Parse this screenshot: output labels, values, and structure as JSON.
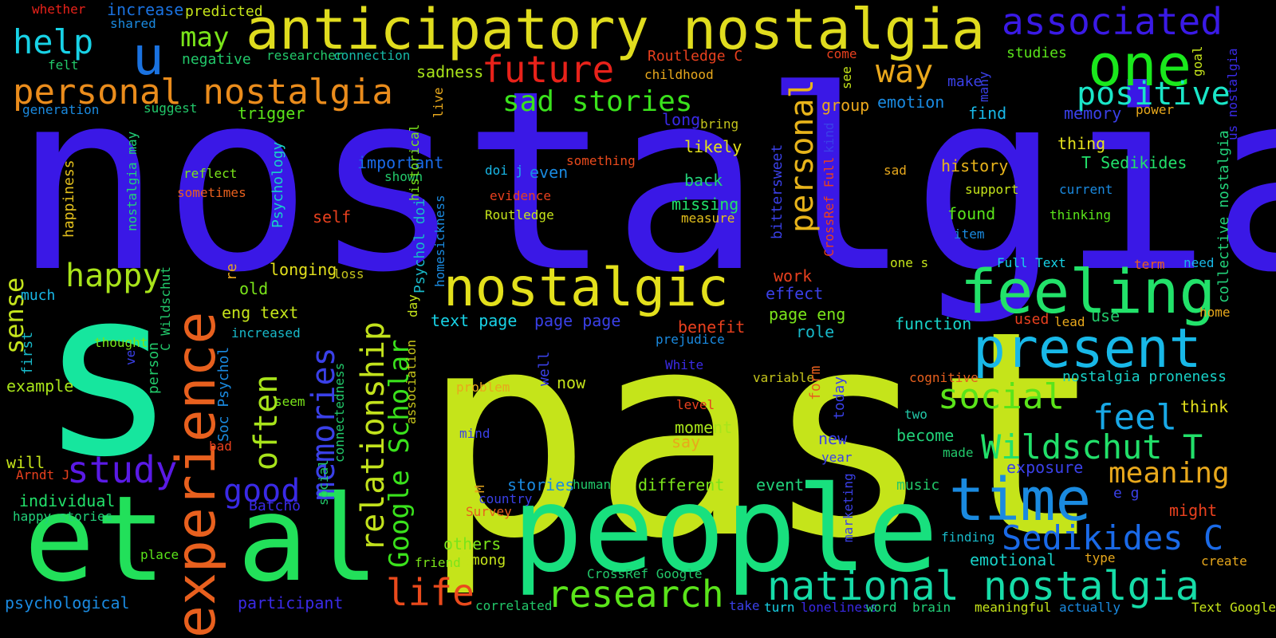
{
  "words": [
    {
      "text": "nostalgia",
      "color": "#3a18e6"
    },
    {
      "text": "past",
      "color": "#c5e41a"
    },
    {
      "text": "s",
      "color": "#16e69e"
    },
    {
      "text": "people",
      "color": "#18e07e"
    },
    {
      "text": "et al",
      "color": "#22e05a"
    },
    {
      "text": "anticipatory nostalgia",
      "color": "#e0dc1e"
    },
    {
      "text": "feeling",
      "color": "#22e26a"
    },
    {
      "text": "present",
      "color": "#18b8e8"
    },
    {
      "text": "time",
      "color": "#1a8ae0"
    },
    {
      "text": "experience",
      "color": "#e8601e"
    },
    {
      "text": "nostalgic",
      "color": "#e3e01c"
    },
    {
      "text": "personal nostalgia",
      "color": "#ea8c1c"
    },
    {
      "text": "one",
      "color": "#1ae81c"
    },
    {
      "text": "u",
      "color": "#1a72e0"
    },
    {
      "text": "associated",
      "color": "#3a1ae6"
    },
    {
      "text": "help",
      "color": "#18d2e6"
    },
    {
      "text": "future",
      "color": "#e8221a"
    },
    {
      "text": "national nostalgia",
      "color": "#16dca8"
    },
    {
      "text": "Sedikides C",
      "color": "#1a6ae8"
    },
    {
      "text": "Wildschut T",
      "color": "#22e06a"
    },
    {
      "text": "research",
      "color": "#5ae41a"
    },
    {
      "text": "life",
      "color": "#ea4a1c"
    },
    {
      "text": "memories",
      "color": "#3a40e8"
    },
    {
      "text": "relationship",
      "color": "#c2e21c"
    },
    {
      "text": "Google Scholar",
      "color": "#3ae21c"
    },
    {
      "text": "study",
      "color": "#5a1ae6"
    },
    {
      "text": "personal",
      "color": "#e8b41a"
    },
    {
      "text": "way",
      "color": "#eaa81c"
    },
    {
      "text": "positive",
      "color": "#1ae6c8"
    },
    {
      "text": "sad stories",
      "color": "#3ae21c"
    },
    {
      "text": "social",
      "color": "#5ae41a"
    },
    {
      "text": "feel",
      "color": "#18a8e6"
    },
    {
      "text": "meaning",
      "color": "#e8a81c"
    },
    {
      "text": "often",
      "color": "#a8e41a"
    },
    {
      "text": "happy",
      "color": "#a8e41a"
    },
    {
      "text": "good",
      "color": "#3a2ae6"
    },
    {
      "text": "sense",
      "color": "#c4e41c"
    },
    {
      "text": "may",
      "color": "#7ae41a"
    },
    {
      "text": "whether",
      "color": "#e8221a"
    },
    {
      "text": "increase",
      "color": "#1a72e0"
    },
    {
      "text": "predicted",
      "color": "#c5e41a"
    },
    {
      "text": "shared",
      "color": "#1a8ae0"
    },
    {
      "text": "negative",
      "color": "#22c86a"
    },
    {
      "text": "researcher",
      "color": "#22c86a"
    },
    {
      "text": "connection",
      "color": "#16b8a8"
    },
    {
      "text": "Routledge C",
      "color": "#e8401e"
    },
    {
      "text": "childhood",
      "color": "#e8a81c"
    },
    {
      "text": "come",
      "color": "#e8401e"
    },
    {
      "text": "studies",
      "color": "#5ae41a"
    },
    {
      "text": "felt",
      "color": "#22c86a"
    },
    {
      "text": "sadness",
      "color": "#a8e41a"
    },
    {
      "text": "generation",
      "color": "#1a8ae0"
    },
    {
      "text": "suggest",
      "color": "#22c86a"
    },
    {
      "text": "trigger",
      "color": "#5ae41a"
    },
    {
      "text": "group",
      "color": "#eaa81c"
    },
    {
      "text": "emotion",
      "color": "#1a8ae0"
    },
    {
      "text": "make",
      "color": "#3a40e8"
    },
    {
      "text": "find",
      "color": "#18b8e8"
    },
    {
      "text": "memory",
      "color": "#3a40e8"
    },
    {
      "text": "power",
      "color": "#e8a81c"
    },
    {
      "text": "long",
      "color": "#3a2ae6"
    },
    {
      "text": "bring",
      "color": "#c4c41c"
    },
    {
      "text": "likely",
      "color": "#e3e01c"
    },
    {
      "text": "thing",
      "color": "#e3e01c"
    },
    {
      "text": "T Sedikides",
      "color": "#22e06a"
    },
    {
      "text": "history",
      "color": "#e8b41a"
    },
    {
      "text": "sad",
      "color": "#e8a81c"
    },
    {
      "text": "important",
      "color": "#1a6ae8"
    },
    {
      "text": "something",
      "color": "#ea4a1c"
    },
    {
      "text": "doi j",
      "color": "#18b8e8"
    },
    {
      "text": "even",
      "color": "#1a8ae0"
    },
    {
      "text": "back",
      "color": "#22d27a"
    },
    {
      "text": "reflect",
      "color": "#7ae41a"
    },
    {
      "text": "shown",
      "color": "#22c86a"
    },
    {
      "text": "evidence",
      "color": "#e8401e"
    },
    {
      "text": "support",
      "color": "#c5e41a"
    },
    {
      "text": "current",
      "color": "#1a8ae0"
    },
    {
      "text": "sometimes",
      "color": "#e8601e"
    },
    {
      "text": "missing",
      "color": "#22e06a"
    },
    {
      "text": "found",
      "color": "#5ae41a"
    },
    {
      "text": "thinking",
      "color": "#5ae41a"
    },
    {
      "text": "self",
      "color": "#e8401e"
    },
    {
      "text": "Routledge",
      "color": "#c5e41a"
    },
    {
      "text": "measure",
      "color": "#e3c01c"
    },
    {
      "text": "item",
      "color": "#1a8ae0"
    },
    {
      "text": "one s",
      "color": "#c5e41a"
    },
    {
      "text": "Full Text",
      "color": "#18d2e6"
    },
    {
      "text": "term",
      "color": "#e8601e"
    },
    {
      "text": "need",
      "color": "#18b8e8"
    },
    {
      "text": "much",
      "color": "#18b8e8"
    },
    {
      "text": "longing",
      "color": "#e3e01c"
    },
    {
      "text": "loss",
      "color": "#c4c41c"
    },
    {
      "text": "old",
      "color": "#7ae41a"
    },
    {
      "text": "work",
      "color": "#e8401e"
    },
    {
      "text": "effect",
      "color": "#3a40e8"
    },
    {
      "text": "eng text",
      "color": "#c5e41a"
    },
    {
      "text": "increased",
      "color": "#18b8c8"
    },
    {
      "text": "text page",
      "color": "#18d2e6"
    },
    {
      "text": "page page",
      "color": "#3a40e8"
    },
    {
      "text": "benefit",
      "color": "#e8401e"
    },
    {
      "text": "page eng",
      "color": "#7ae41a"
    },
    {
      "text": "role",
      "color": "#18b8c8"
    },
    {
      "text": "function",
      "color": "#18d2c8"
    },
    {
      "text": "used",
      "color": "#e8401e"
    },
    {
      "text": "lead",
      "color": "#e8a81c"
    },
    {
      "text": "use",
      "color": "#22c86a"
    },
    {
      "text": "home",
      "color": "#e8a81c"
    },
    {
      "text": "thought",
      "color": "#7ae41a"
    },
    {
      "text": "prejudice",
      "color": "#1a8ae0"
    },
    {
      "text": "White",
      "color": "#3a2ae6"
    },
    {
      "text": "cognitive",
      "color": "#e8601e"
    },
    {
      "text": "nostalgia proneness",
      "color": "#18d2c8"
    },
    {
      "text": "example",
      "color": "#a8e41a"
    },
    {
      "text": "seem",
      "color": "#7ae41a"
    },
    {
      "text": "problem",
      "color": "#e8a81c"
    },
    {
      "text": "now",
      "color": "#c5e41a"
    },
    {
      "text": "variable",
      "color": "#c4c41c"
    },
    {
      "text": "level",
      "color": "#e8401e"
    },
    {
      "text": "think",
      "color": "#e3e01c"
    },
    {
      "text": "two",
      "color": "#22c8a8"
    },
    {
      "text": "moment",
      "color": "#a8e41a"
    },
    {
      "text": "become",
      "color": "#22d27a"
    },
    {
      "text": "mind",
      "color": "#3a40e8"
    },
    {
      "text": "say",
      "color": "#e8a81c"
    },
    {
      "text": "new",
      "color": "#3a40e8"
    },
    {
      "text": "made",
      "color": "#22c86a"
    },
    {
      "text": "bad",
      "color": "#e8401e"
    },
    {
      "text": "year",
      "color": "#3a40e8"
    },
    {
      "text": "exposure",
      "color": "#3a40e8"
    },
    {
      "text": "will",
      "color": "#c5e41a"
    },
    {
      "text": "Arndt J",
      "color": "#e8401e"
    },
    {
      "text": "stories",
      "color": "#1a8ae0"
    },
    {
      "text": "human",
      "color": "#22c86a"
    },
    {
      "text": "different",
      "color": "#7ae41a"
    },
    {
      "text": "event",
      "color": "#22d27a"
    },
    {
      "text": "music",
      "color": "#22c86a"
    },
    {
      "text": "e g",
      "color": "#3a40e8"
    },
    {
      "text": "individual",
      "color": "#22e06a"
    },
    {
      "text": "Batcho",
      "color": "#3a2ae6"
    },
    {
      "text": "country",
      "color": "#3a40e8"
    },
    {
      "text": "happy stories",
      "color": "#22d27a"
    },
    {
      "text": "Survey",
      "color": "#e8601e"
    },
    {
      "text": "might",
      "color": "#e8401e"
    },
    {
      "text": "finding",
      "color": "#18b8c8"
    },
    {
      "text": "others",
      "color": "#7ae41a"
    },
    {
      "text": "place",
      "color": "#5ae41a"
    },
    {
      "text": "among",
      "color": "#c5e41a"
    },
    {
      "text": "friend",
      "color": "#7ae41a"
    },
    {
      "text": "emotional",
      "color": "#18d2c8"
    },
    {
      "text": "type",
      "color": "#e8a81c"
    },
    {
      "text": "create",
      "color": "#e8a81c"
    },
    {
      "text": "CrossRef Google",
      "color": "#22c86a"
    },
    {
      "text": "psychological",
      "color": "#1a8ae0"
    },
    {
      "text": "participant",
      "color": "#3a2ae6"
    },
    {
      "text": "correlated",
      "color": "#22c86a"
    },
    {
      "text": "take",
      "color": "#3a40e8"
    },
    {
      "text": "turn",
      "color": "#18d2e6"
    },
    {
      "text": "loneliness",
      "color": "#3a2ae6"
    },
    {
      "text": "word",
      "color": "#22d27a"
    },
    {
      "text": "brain",
      "color": "#22d27a"
    },
    {
      "text": "meaningful",
      "color": "#c5e41a"
    },
    {
      "text": "actually",
      "color": "#1a8ae0"
    },
    {
      "text": "Text Google",
      "color": "#c5e41a"
    },
    {
      "text": "nostalgia may",
      "color": "#22d27a"
    },
    {
      "text": "happiness",
      "color": "#e3c01c"
    },
    {
      "text": "Psychology",
      "color": "#18d2c8"
    },
    {
      "text": "historical",
      "color": "#7ae41a"
    },
    {
      "text": "live",
      "color": "#e8a81c"
    },
    {
      "text": "Psychol doi",
      "color": "#18b8c8"
    },
    {
      "text": "homesickness",
      "color": "#1a8ae0"
    },
    {
      "text": "day",
      "color": "#c5e41a"
    },
    {
      "text": "association",
      "color": "#c5c41a"
    },
    {
      "text": "well",
      "color": "#3a40e8"
    },
    {
      "text": "C Wildschut",
      "color": "#22c86a"
    },
    {
      "text": "person",
      "color": "#22c86a"
    },
    {
      "text": "Soc Psychol",
      "color": "#1a8ae0"
    },
    {
      "text": "connectedness",
      "color": "#22c86a"
    },
    {
      "text": "social",
      "color": "#22c86a"
    },
    {
      "text": "re",
      "color": "#e8a81c"
    },
    {
      "text": "first",
      "color": "#18b8c8"
    },
    {
      "text": "ve",
      "color": "#3a40e8"
    },
    {
      "text": "bittersweet",
      "color": "#3a40e8"
    },
    {
      "text": "CrossRef Full",
      "color": "#e8401e"
    },
    {
      "text": "kind",
      "color": "#3a40e8"
    },
    {
      "text": "form",
      "color": "#e8601e"
    },
    {
      "text": "today",
      "color": "#3a40e8"
    },
    {
      "text": "marketing",
      "color": "#3a40e8"
    },
    {
      "text": "see",
      "color": "#c5e41a"
    },
    {
      "text": "many",
      "color": "#3a40e8"
    },
    {
      "text": "goal",
      "color": "#c5e41a"
    },
    {
      "text": "us nostalgia",
      "color": "#3a2ae6"
    },
    {
      "text": "collective nostalgia",
      "color": "#22d27a"
    },
    {
      "text": "M",
      "color": "#e8a81c"
    }
  ]
}
